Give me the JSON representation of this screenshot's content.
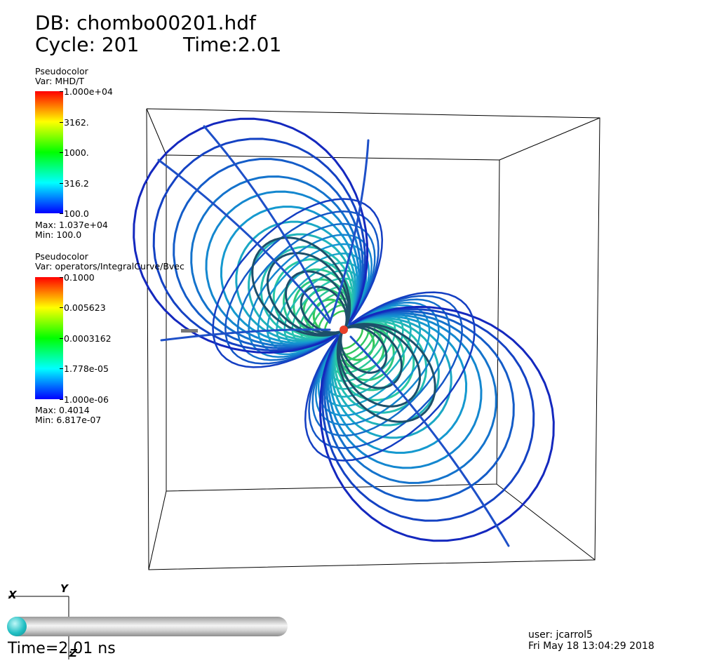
{
  "header": {
    "db_label": "DB: chombo00201.hdf",
    "cycle_label": "Cycle: 201",
    "time_label": "Time:2.01"
  },
  "legend_temperature": {
    "plot_type": "Pseudocolor",
    "var_label": "Var: MHD/T",
    "ticks": [
      "1.000e+04",
      "3162.",
      "1000.",
      "316.2",
      "100.0"
    ],
    "max_label": "Max:  1.037e+04",
    "min_label": "Min:  100.0"
  },
  "legend_field": {
    "plot_type": "Pseudocolor",
    "var_label": "Var: operators/IntegralCurve/Bvec",
    "ticks": [
      "0.1000",
      "0.005623",
      "0.0003162",
      "1.778e-05",
      "1.000e-06"
    ],
    "max_label": "Max:  0.4014",
    "min_label": "Min:  6.817e-07"
  },
  "triad": {
    "x": "X",
    "y": "Y",
    "z": "Z"
  },
  "time_slider": {
    "label": "Time=2.01 ns",
    "progress": 0.0
  },
  "footer": {
    "user_label": "user: jcarrol5",
    "date_label": "Fri May 18 13:04:29 2018"
  },
  "colors": {
    "colormap": [
      "#ff0000",
      "#ffff00",
      "#00ff00",
      "#00ffff",
      "#0000ff"
    ],
    "knob": "#22c0c4"
  }
}
